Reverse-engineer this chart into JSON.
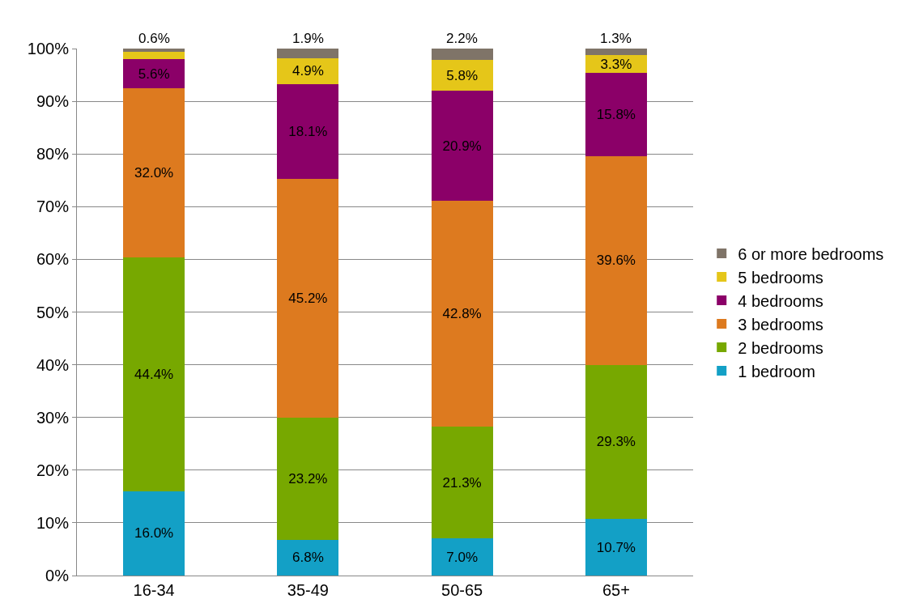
{
  "chart_data": {
    "type": "bar",
    "stacked": true,
    "categories": [
      "16-34",
      "35-49",
      "50-65",
      "65+"
    ],
    "series": [
      {
        "name": "1 bedroom",
        "color": "#13a0c6",
        "values": [
          16.0,
          6.8,
          7.0,
          10.7
        ],
        "value_labels": [
          "16.0%",
          "6.8%",
          "7.0%",
          "10.7%"
        ]
      },
      {
        "name": "2 bedrooms",
        "color": "#77a800",
        "values": [
          44.4,
          23.2,
          21.3,
          29.3
        ],
        "value_labels": [
          "44.4%",
          "23.2%",
          "21.3%",
          "29.3%"
        ]
      },
      {
        "name": "3 bedrooms",
        "color": "#dd7a1f",
        "values": [
          32.0,
          45.2,
          42.8,
          39.6
        ],
        "value_labels": [
          "32.0%",
          "45.2%",
          "42.8%",
          "39.6%"
        ]
      },
      {
        "name": "4 bedrooms",
        "color": "#8b0068",
        "values": [
          5.6,
          18.1,
          20.9,
          15.8
        ],
        "value_labels": [
          "5.6%",
          "18.1%",
          "20.9%",
          "15.8%"
        ]
      },
      {
        "name": "5 bedrooms",
        "color": "#e5c619",
        "values": [
          1.4,
          4.9,
          5.8,
          3.3
        ],
        "value_labels": [
          null,
          "4.9%",
          "5.8%",
          "3.3%"
        ]
      },
      {
        "name": "6 or more bedrooms",
        "color": "#7f7468",
        "values": [
          0.6,
          1.9,
          2.2,
          1.3
        ],
        "value_labels": [
          "0.6%",
          "1.9%",
          "2.2%",
          "1.3%"
        ]
      }
    ],
    "ylim": [
      0,
      100
    ],
    "yticks": [
      {
        "value": 0,
        "label": "0%"
      },
      {
        "value": 10,
        "label": "10%"
      },
      {
        "value": 20,
        "label": "20%"
      },
      {
        "value": 30,
        "label": "30%"
      },
      {
        "value": 40,
        "label": "40%"
      },
      {
        "value": 50,
        "label": "50%"
      },
      {
        "value": 60,
        "label": "60%"
      },
      {
        "value": 70,
        "label": "70%"
      },
      {
        "value": 80,
        "label": "80%"
      },
      {
        "value": 90,
        "label": "90%"
      },
      {
        "value": 100,
        "label": "100%"
      }
    ],
    "grid": "y",
    "legend": "right"
  }
}
